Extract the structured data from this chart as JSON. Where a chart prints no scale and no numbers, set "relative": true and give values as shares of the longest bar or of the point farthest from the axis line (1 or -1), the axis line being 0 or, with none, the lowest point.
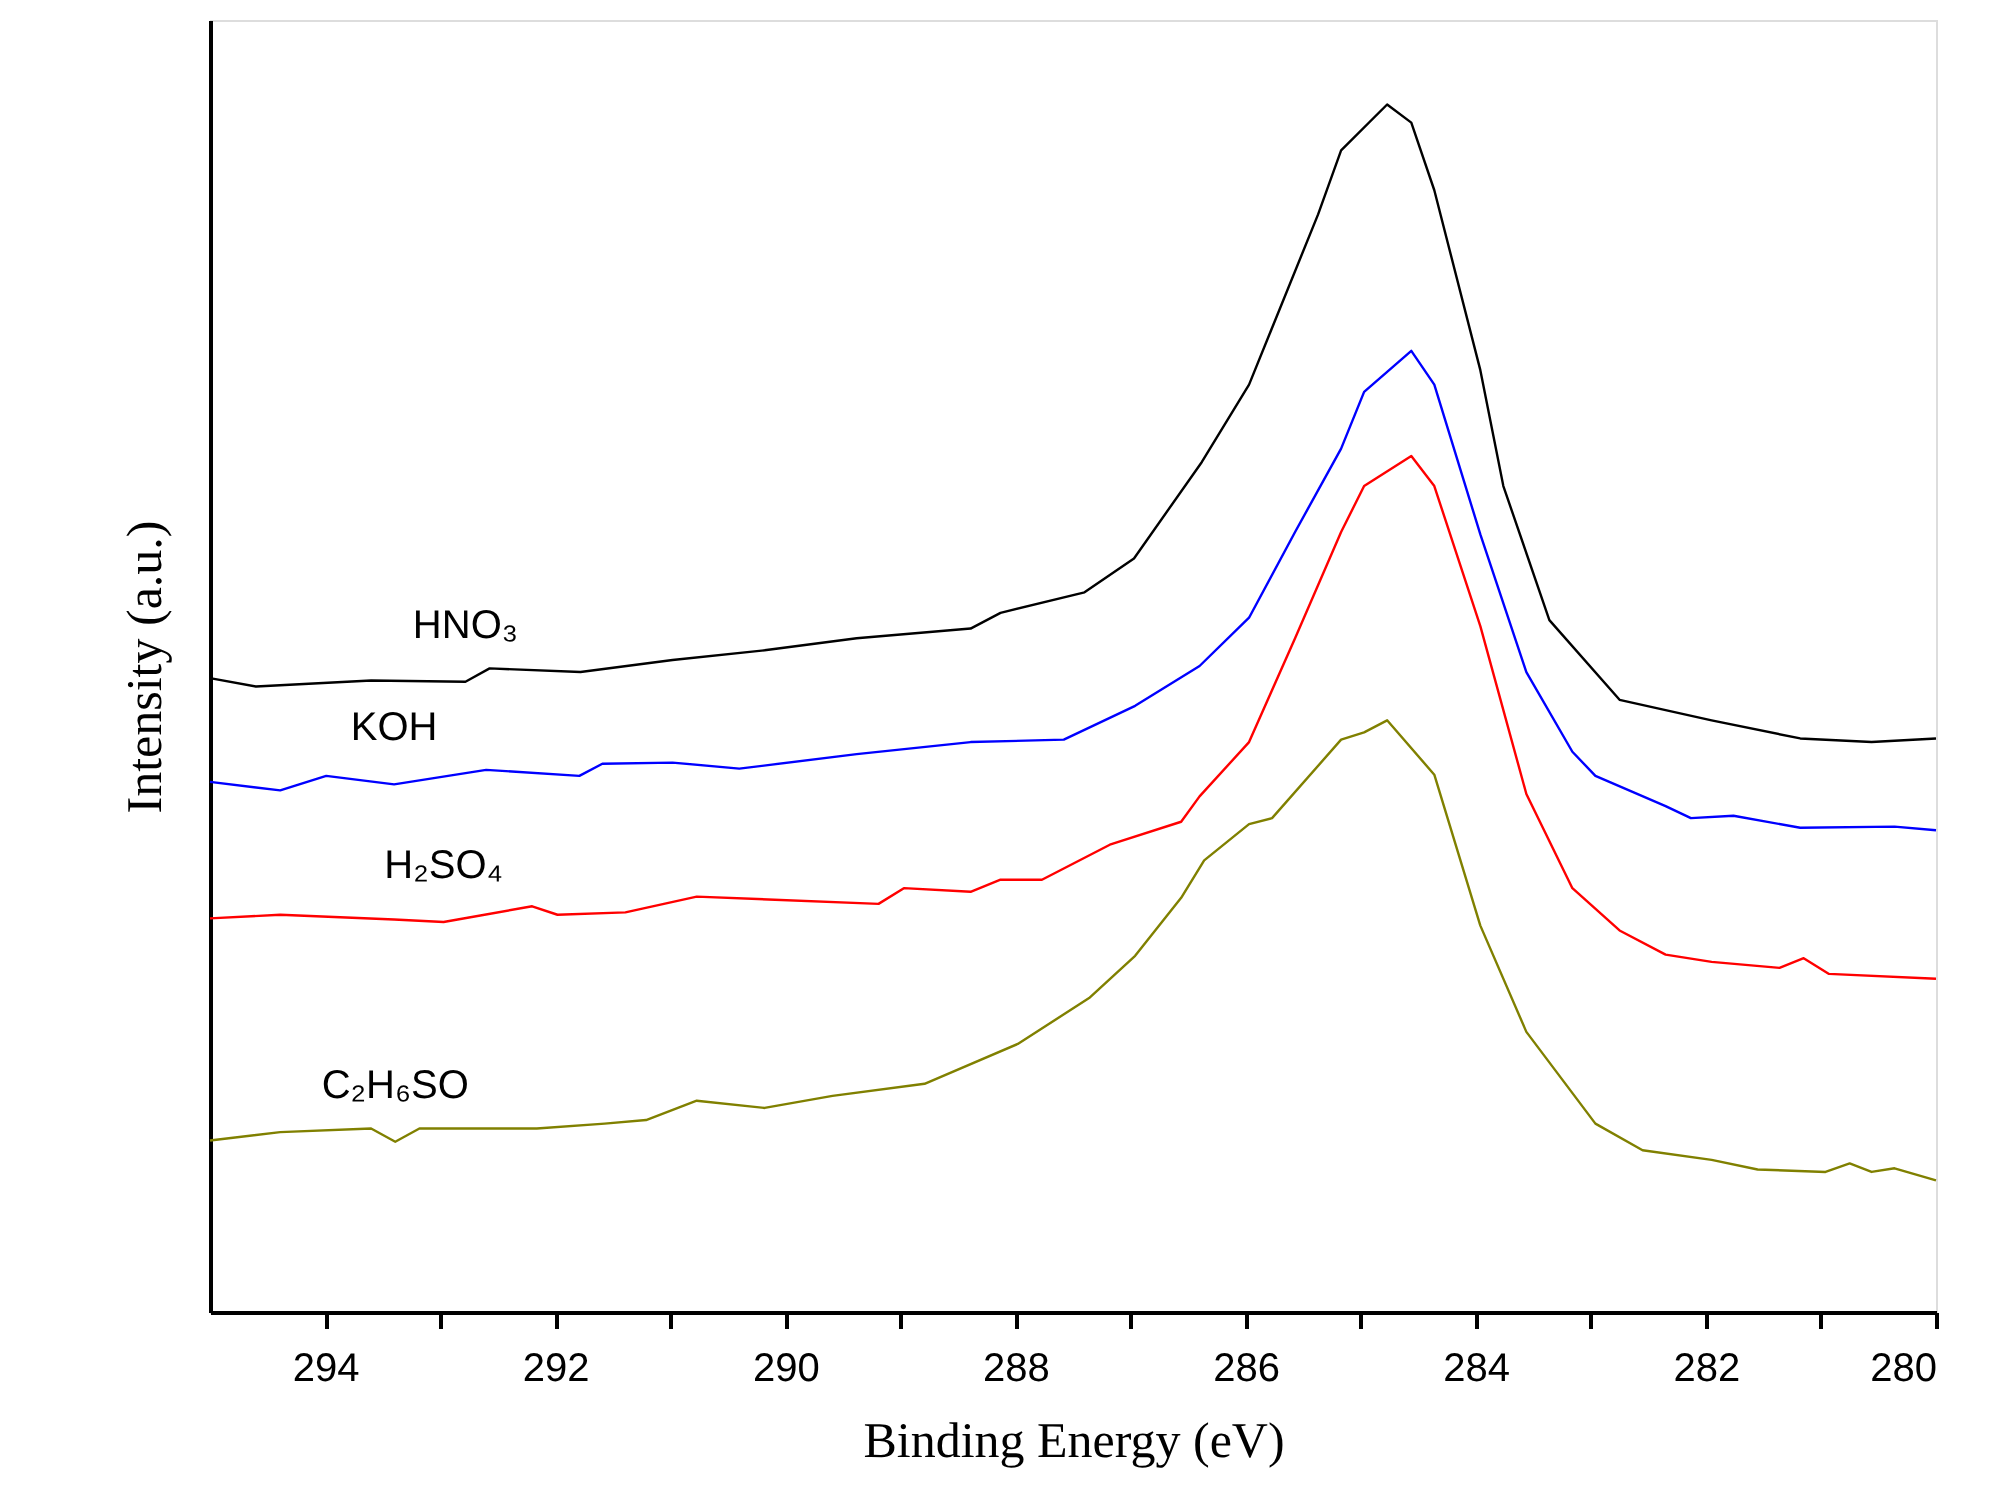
{
  "chart_data": {
    "type": "line",
    "relative": true,
    "xlabel": "Binding Energy (eV)",
    "ylabel": "Intensity (a.u.)",
    "xlim": [
      295,
      280
    ],
    "xticks": [
      294,
      {
        "value": 293,
        "label": null
      },
      292,
      {
        "value": 291,
        "label": null
      },
      290,
      {
        "value": 289,
        "label": null
      },
      288,
      {
        "value": 287,
        "label": null
      },
      286,
      {
        "value": 285,
        "label": null
      },
      284,
      {
        "value": 283,
        "label": null
      },
      282,
      {
        "value": 281,
        "label": null
      },
      280
    ],
    "grid": false,
    "legend": false,
    "tick_labels": "x",
    "series": [
      {
        "name": "HNO₃",
        "color": "#000000",
        "x": [
          295,
          294.6,
          293.6,
          292.78,
          292.57,
          291.78,
          290.98,
          290.18,
          289.38,
          288.39,
          288.13,
          287.4,
          286.97,
          286.38,
          285.97,
          285.37,
          285.17,
          284.77,
          284.56,
          284.36,
          283.96,
          283.76,
          283.36,
          282.75,
          281.95,
          281.18,
          280.56,
          280
        ],
        "values": [
          0.525,
          0.518,
          0.523,
          0.522,
          0.533,
          0.53,
          0.54,
          0.548,
          0.558,
          0.566,
          0.579,
          0.596,
          0.624,
          0.704,
          0.768,
          0.909,
          0.962,
          1.0,
          0.985,
          0.929,
          0.78,
          0.684,
          0.573,
          0.507,
          0.49,
          0.475,
          0.472,
          0.475
        ]
      },
      {
        "name": "KOH",
        "color": "#0000ff",
        "x": [
          295,
          294.39,
          293.99,
          293.4,
          292.6,
          291.79,
          291.59,
          290.98,
          290.4,
          289.38,
          288.39,
          287.58,
          286.96,
          286.4,
          285.97,
          285.57,
          285.17,
          284.97,
          284.56,
          284.36,
          283.96,
          283.56,
          283.16,
          282.96,
          282.35,
          282.13,
          281.76,
          281.18,
          280.36,
          280
        ],
        "values": [
          0.439,
          0.432,
          0.444,
          0.437,
          0.449,
          0.444,
          0.454,
          0.455,
          0.45,
          0.462,
          0.472,
          0.474,
          0.502,
          0.535,
          0.575,
          0.646,
          0.715,
          0.762,
          0.796,
          0.768,
          0.644,
          0.53,
          0.464,
          0.444,
          0.419,
          0.409,
          0.411,
          0.401,
          0.402,
          0.399
        ]
      },
      {
        "name": "H₂SO₄",
        "color": "#ff0000",
        "x": [
          295,
          294.39,
          293.4,
          292.97,
          292.2,
          291.98,
          291.39,
          290.77,
          289.19,
          288.97,
          288.39,
          288.13,
          287.77,
          287.18,
          286.56,
          286.4,
          285.97,
          285.57,
          285.17,
          284.97,
          284.56,
          284.36,
          283.96,
          283.56,
          283.16,
          282.75,
          282.35,
          281.95,
          281.36,
          281.15,
          280.93,
          280
        ],
        "values": [
          0.326,
          0.329,
          0.325,
          0.323,
          0.336,
          0.329,
          0.331,
          0.344,
          0.338,
          0.351,
          0.348,
          0.358,
          0.358,
          0.387,
          0.406,
          0.427,
          0.472,
          0.558,
          0.646,
          0.684,
          0.709,
          0.684,
          0.568,
          0.429,
          0.351,
          0.316,
          0.296,
          0.29,
          0.285,
          0.293,
          0.28,
          0.276
        ]
      },
      {
        "name": "C₂H₆SO",
        "color": "#808000",
        "x": [
          295,
          294.39,
          293.6,
          293.39,
          293.18,
          292.16,
          291.57,
          291.21,
          290.77,
          290.18,
          289.59,
          288.79,
          287.98,
          287.36,
          286.96,
          286.56,
          286.36,
          285.97,
          285.77,
          285.17,
          284.97,
          284.77,
          284.36,
          283.96,
          283.56,
          282.96,
          282.55,
          281.95,
          281.55,
          280.96,
          280.75,
          280.56,
          280.36,
          280
        ],
        "values": [
          0.142,
          0.149,
          0.152,
          0.141,
          0.152,
          0.152,
          0.156,
          0.159,
          0.175,
          0.169,
          0.179,
          0.189,
          0.222,
          0.26,
          0.295,
          0.343,
          0.374,
          0.404,
          0.409,
          0.474,
          0.48,
          0.49,
          0.445,
          0.32,
          0.232,
          0.156,
          0.134,
          0.126,
          0.118,
          0.116,
          0.123,
          0.116,
          0.119,
          0.109
        ]
      }
    ]
  }
}
